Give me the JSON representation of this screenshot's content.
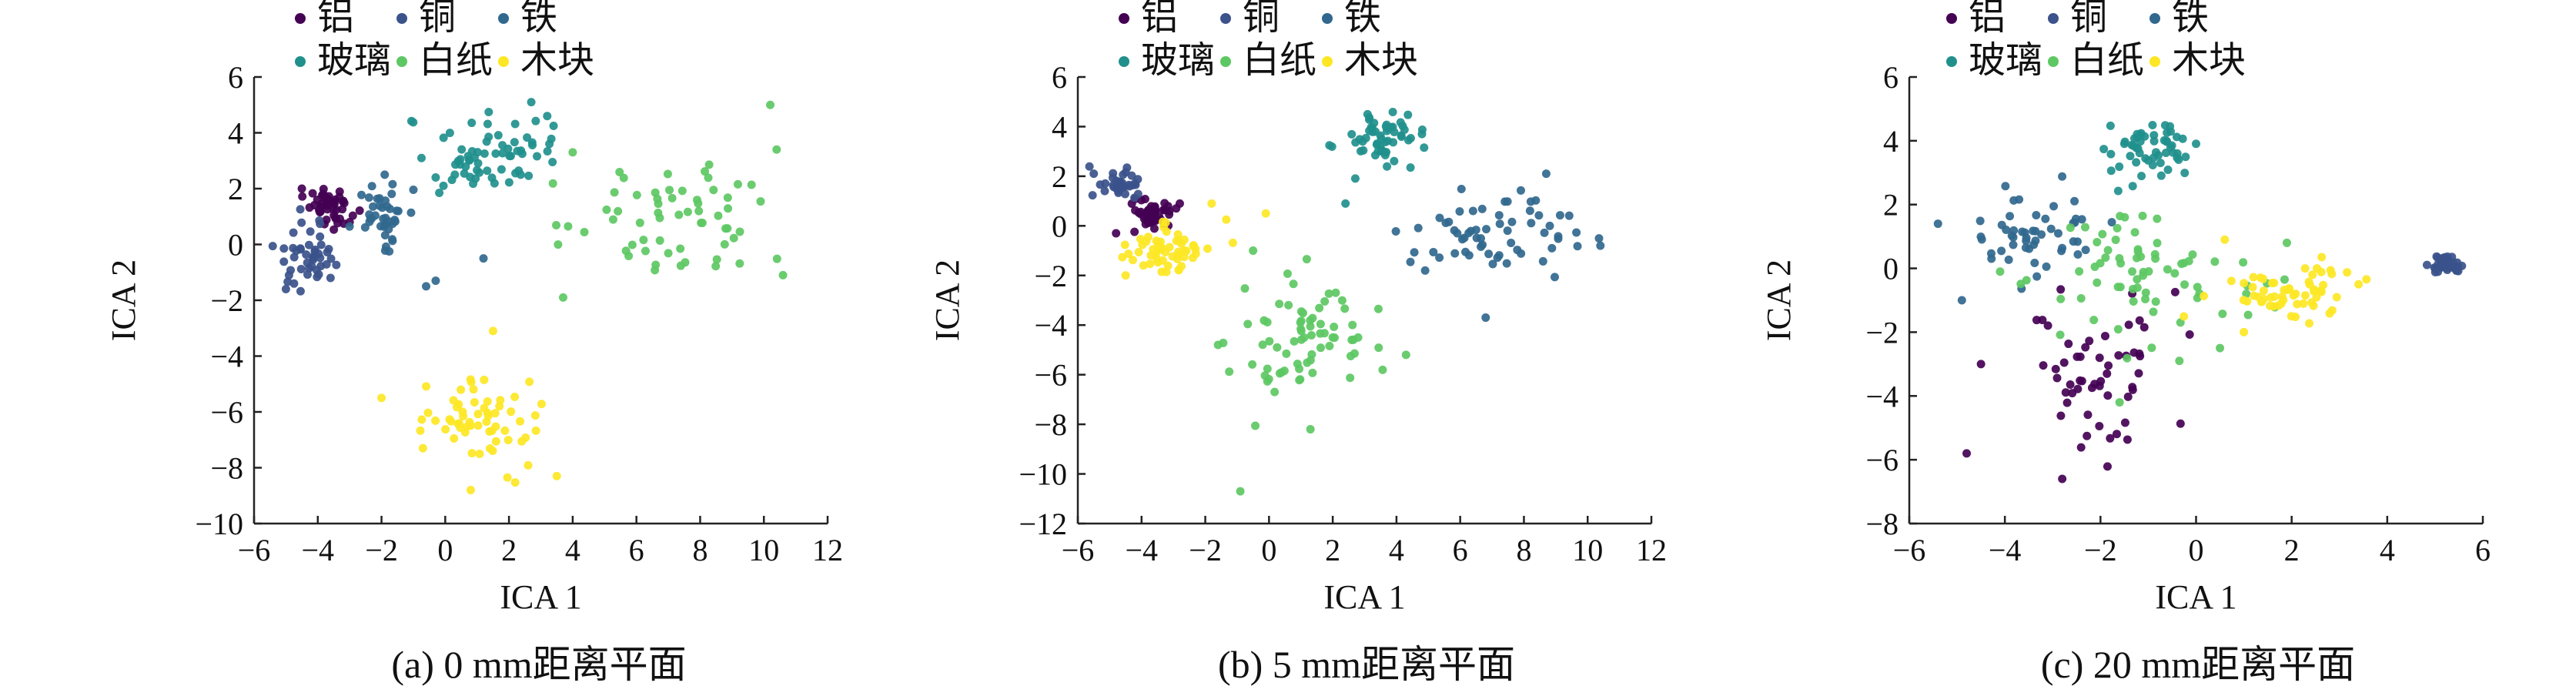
{
  "chart_data": [
    {
      "type": "scatter",
      "caption": "(a) 0 mm距离平面",
      "xlabel": "ICA 1",
      "ylabel": "ICA 2",
      "xlim": [
        -6,
        12
      ],
      "ylim": [
        -10,
        6
      ],
      "xticks": [
        -6,
        -4,
        -2,
        0,
        2,
        4,
        6,
        8,
        10,
        12
      ],
      "yticks": [
        -10,
        -8,
        -6,
        -4,
        -2,
        0,
        2,
        4,
        6
      ],
      "legend": [
        "铝",
        "铜",
        "铁",
        "玻璃",
        "白纸",
        "木块"
      ],
      "series": [
        {
          "name": "铝",
          "color": "#440154",
          "cx": -3.6,
          "cy": 1.3,
          "sx": 0.35,
          "sy": 0.35,
          "n": 45,
          "extra": [
            [
              -4.5,
              2.0
            ],
            [
              -3.0,
              0.8
            ]
          ]
        },
        {
          "name": "铜",
          "color": "#3b528b",
          "cx": -4.3,
          "cy": -0.4,
          "sx": 0.45,
          "sy": 0.55,
          "n": 45,
          "extra": [
            [
              -5.0,
              -1.6
            ],
            [
              -3.6,
              -1.2
            ]
          ]
        },
        {
          "name": "铁",
          "color": "#31688e",
          "cx": -2.0,
          "cy": 1.3,
          "sx": 0.45,
          "sy": 0.6,
          "n": 40,
          "extra": [
            [
              1.2,
              -0.5
            ],
            [
              -0.3,
              -1.3
            ],
            [
              -0.6,
              -1.5
            ],
            [
              -1.9,
              2.5
            ]
          ]
        },
        {
          "name": "玻璃",
          "color": "#21908d",
          "cx": 1.5,
          "cy": 3.2,
          "sx": 1.3,
          "sy": 0.8,
          "n": 65,
          "extra": [
            [
              3.2,
              4.6
            ],
            [
              2.7,
              5.1
            ],
            [
              -0.3,
              2.4
            ]
          ]
        },
        {
          "name": "白纸",
          "color": "#5dc863",
          "cx": 7.2,
          "cy": 1.1,
          "sx": 1.6,
          "sy": 1.1,
          "n": 60,
          "extra": [
            [
              10.2,
              5.0
            ],
            [
              10.4,
              3.4
            ],
            [
              10.6,
              -1.1
            ],
            [
              3.7,
              -1.9
            ],
            [
              4.0,
              3.3
            ]
          ]
        },
        {
          "name": "木块",
          "color": "#fde725",
          "cx": 1.0,
          "cy": -6.4,
          "sx": 1.0,
          "sy": 0.8,
          "n": 60,
          "extra": [
            [
              -2.0,
              -5.5
            ],
            [
              1.5,
              -3.1
            ],
            [
              0.8,
              -8.8
            ],
            [
              3.5,
              -8.3
            ]
          ]
        }
      ]
    },
    {
      "type": "scatter",
      "caption": "(b) 5 mm距离平面",
      "xlabel": "ICA 1",
      "ylabel": "ICA 2",
      "xlim": [
        -6,
        12
      ],
      "ylim": [
        -12,
        6
      ],
      "xticks": [
        -6,
        -4,
        -2,
        0,
        2,
        4,
        6,
        8,
        10,
        12
      ],
      "yticks": [
        -12,
        -10,
        -8,
        -6,
        -4,
        -2,
        0,
        2,
        4,
        6
      ],
      "legend": [
        "铝",
        "铜",
        "铁",
        "玻璃",
        "白纸",
        "木块"
      ],
      "series": [
        {
          "name": "铝",
          "color": "#440154",
          "cx": -3.7,
          "cy": 0.4,
          "sx": 0.4,
          "sy": 0.3,
          "n": 45,
          "extra": [
            [
              -4.8,
              -0.3
            ],
            [
              -2.8,
              0.9
            ]
          ]
        },
        {
          "name": "铜",
          "color": "#3b528b",
          "cx": -4.8,
          "cy": 1.6,
          "sx": 0.3,
          "sy": 0.3,
          "n": 35,
          "extra": [
            [
              -5.5,
              2.1
            ]
          ]
        },
        {
          "name": "铁",
          "color": "#31688e",
          "cx": 7.2,
          "cy": -0.3,
          "sx": 1.3,
          "sy": 0.9,
          "n": 60,
          "extra": [
            [
              10.4,
              -0.8
            ],
            [
              6.8,
              -3.7
            ],
            [
              8.7,
              2.1
            ],
            [
              4.9,
              -1.8
            ]
          ]
        },
        {
          "name": "玻璃",
          "color": "#21908d",
          "cx": 3.4,
          "cy": 3.5,
          "sx": 0.55,
          "sy": 0.5,
          "n": 55,
          "extra": [
            [
              2.4,
              0.9
            ],
            [
              4.8,
              3.7
            ]
          ]
        },
        {
          "name": "白纸",
          "color": "#5dc863",
          "cx": 1.3,
          "cy": -4.3,
          "sx": 1.2,
          "sy": 1.5,
          "n": 70,
          "extra": [
            [
              -0.9,
              -10.7
            ],
            [
              1.3,
              -8.2
            ],
            [
              4.3,
              -5.2
            ],
            [
              -1.6,
              -4.8
            ],
            [
              -0.5,
              -1.0
            ]
          ]
        },
        {
          "name": "木块",
          "color": "#fde725",
          "cx": -3.1,
          "cy": -0.9,
          "sx": 0.75,
          "sy": 0.55,
          "n": 55,
          "extra": [
            [
              -0.1,
              0.5
            ],
            [
              -1.8,
              0.9
            ],
            [
              -4.5,
              -2.0
            ]
          ]
        }
      ]
    },
    {
      "type": "scatter",
      "caption": "(c) 20 mm距离平面",
      "xlabel": "ICA 1",
      "ylabel": "ICA 2",
      "xlim": [
        -6,
        6
      ],
      "ylim": [
        -8,
        6
      ],
      "xticks": [
        -6,
        -4,
        -2,
        0,
        2,
        4,
        6
      ],
      "yticks": [
        -8,
        -6,
        -4,
        -2,
        0,
        2,
        4,
        6
      ],
      "legend": [
        "铝",
        "铜",
        "铁",
        "玻璃",
        "白纸",
        "木块"
      ],
      "series": [
        {
          "name": "铝",
          "color": "#440154",
          "cx": -2.0,
          "cy": -3.2,
          "sx": 0.75,
          "sy": 1.3,
          "n": 55,
          "extra": [
            [
              -4.8,
              -5.8
            ],
            [
              -2.8,
              -6.6
            ],
            [
              -4.5,
              -3.0
            ]
          ]
        },
        {
          "name": "铜",
          "color": "#3b528b",
          "cx": 5.2,
          "cy": 0.1,
          "sx": 0.15,
          "sy": 0.15,
          "n": 40,
          "extra": []
        },
        {
          "name": "铁",
          "color": "#31688e",
          "cx": -3.4,
          "cy": 1.0,
          "sx": 0.8,
          "sy": 0.75,
          "n": 50,
          "extra": [
            [
              -5.4,
              1.4
            ],
            [
              -4.9,
              -1.0
            ]
          ]
        },
        {
          "name": "玻璃",
          "color": "#21908d",
          "cx": -0.9,
          "cy": 3.7,
          "sx": 0.45,
          "sy": 0.5,
          "n": 55,
          "extra": []
        },
        {
          "name": "白纸",
          "color": "#5dc863",
          "cx": -1.1,
          "cy": -0.2,
          "sx": 1.2,
          "sy": 1.0,
          "n": 70,
          "extra": [
            [
              -4.1,
              -0.1
            ],
            [
              0.5,
              -2.5
            ],
            [
              -1.6,
              -4.2
            ],
            [
              1.9,
              0.8
            ]
          ]
        },
        {
          "name": "木块",
          "color": "#fde725",
          "cx": 2.0,
          "cy": -0.8,
          "sx": 0.75,
          "sy": 0.45,
          "n": 60,
          "extra": [
            [
              0.6,
              0.9
            ],
            [
              3.4,
              -0.5
            ],
            [
              1.0,
              -2.0
            ]
          ]
        }
      ]
    }
  ]
}
